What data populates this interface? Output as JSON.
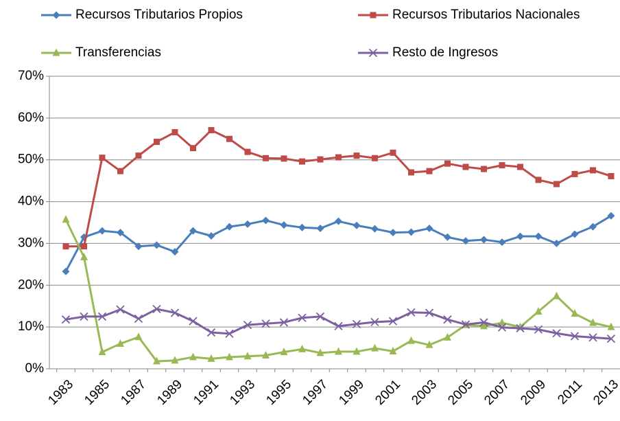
{
  "chart_data": {
    "type": "line",
    "categories": [
      "1983",
      null,
      "1985",
      null,
      "1987",
      null,
      "1989",
      null,
      "1991",
      null,
      "1993",
      null,
      "1995",
      null,
      "1997",
      null,
      "1999",
      null,
      "2001",
      null,
      "2003",
      null,
      "2005",
      null,
      "2007",
      null,
      "2009",
      null,
      "2011",
      null,
      "2013"
    ],
    "series": [
      {
        "name": "Recursos Tributarios Propios",
        "color": "#4a7ebb",
        "marker": "diamond",
        "values": [
          23.3,
          31.5,
          33,
          32.6,
          29.3,
          29.6,
          28,
          33,
          31.8,
          34,
          34.6,
          35.5,
          34.4,
          33.8,
          33.6,
          35.3,
          34.3,
          33.5,
          32.6,
          32.7,
          33.6,
          31.5,
          30.6,
          30.9,
          30.3,
          31.7,
          31.7,
          30,
          32.2,
          34,
          36.6
        ]
      },
      {
        "name": "Recursos Tributarios Nacionales",
        "color": "#be4b48",
        "marker": "square",
        "values": [
          29.3,
          29.3,
          50.5,
          47.3,
          51,
          54.3,
          56.6,
          52.8,
          57.1,
          55,
          51.9,
          50.4,
          50.3,
          49.6,
          50.1,
          50.6,
          51,
          50.4,
          51.7,
          47,
          47.3,
          49.1,
          48.3,
          47.8,
          48.7,
          48.3,
          45.2,
          44.2,
          46.6,
          47.5,
          46.1
        ]
      },
      {
        "name": "Transferencias",
        "color": "#98b954",
        "marker": "triangle",
        "values": [
          35.7,
          26.7,
          4,
          6,
          7.6,
          1.8,
          2,
          2.8,
          2.4,
          2.8,
          3,
          3.2,
          4,
          4.7,
          3.8,
          4.1,
          4.1,
          4.9,
          4.2,
          6.7,
          5.7,
          7.5,
          10.5,
          10.2,
          11,
          10,
          13.7,
          17.4,
          13.2,
          11,
          10
        ]
      },
      {
        "name": "Resto de Ingresos",
        "color": "#7d60a0",
        "marker": "x",
        "values": [
          11.8,
          12.5,
          12.5,
          14.2,
          12,
          14.3,
          13.4,
          11.4,
          8.7,
          8.4,
          10.5,
          10.8,
          11.1,
          12.2,
          12.5,
          10.2,
          10.7,
          11.2,
          11.4,
          13.5,
          13.4,
          11.8,
          10.6,
          11.1,
          9.9,
          9.7,
          9.4,
          8.5,
          7.8,
          7.5,
          7.2
        ]
      }
    ],
    "ylim": [
      0,
      70
    ],
    "yticks": [
      {
        "value": 0,
        "label": "0%"
      },
      {
        "value": 10,
        "label": "10%"
      },
      {
        "value": 20,
        "label": "20%"
      },
      {
        "value": 30,
        "label": "30%"
      },
      {
        "value": 40,
        "label": "40%"
      },
      {
        "value": 50,
        "label": "50%"
      },
      {
        "value": 60,
        "label": "60%"
      },
      {
        "value": 70,
        "label": "70%"
      }
    ],
    "grid": true,
    "legend": "top"
  }
}
